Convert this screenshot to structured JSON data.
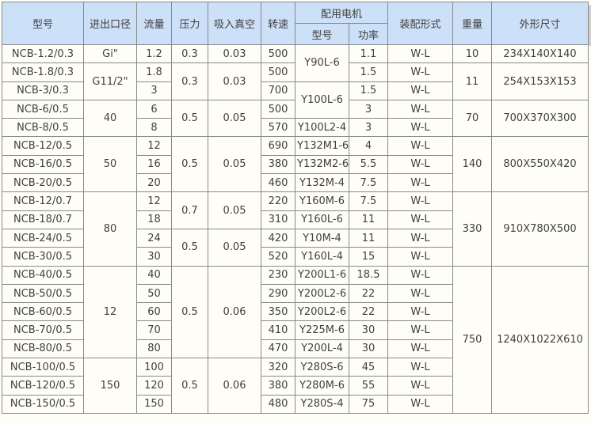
{
  "table": {
    "header": {
      "model": "型号",
      "diameter": "进出口径",
      "flow": "流量",
      "pressure": "压力",
      "vacuum": "吸入真空",
      "speed": "转速",
      "motor_group": "配用电机",
      "motor_model": "型号",
      "motor_power": "功率",
      "assembly": "装配形式",
      "weight": "重量",
      "dimensions": "外形尺寸"
    },
    "colors": {
      "header_bg": "#cce0f7",
      "cell_bg": "#fffef6",
      "border": "#87888a",
      "text": "#3f3f3f"
    },
    "rows": [
      [
        {
          "v": "NCB-1.2/0.3"
        },
        {
          "v": "Gi\""
        },
        {
          "v": "1.2"
        },
        {
          "v": "0.3"
        },
        {
          "v": "0.03"
        },
        {
          "v": "500"
        },
        {
          "v": "Y90L-6",
          "rs": 2
        },
        {
          "v": "1.1"
        },
        {
          "v": "W-L"
        },
        {
          "v": "10"
        },
        {
          "v": "234X140X140"
        }
      ],
      [
        {
          "v": "NCB-1.8/0.3"
        },
        {
          "v": "G11/2\"",
          "rs": 2
        },
        {
          "v": "1.8"
        },
        {
          "v": "0.3",
          "rs": 2
        },
        {
          "v": "0.03",
          "rs": 2
        },
        {
          "v": "500"
        },
        {
          "v": "1.5"
        },
        {
          "v": "W-L"
        },
        {
          "v": "11",
          "rs": 2
        },
        {
          "v": "254X153X153",
          "rs": 2
        }
      ],
      [
        {
          "v": "NCB-3/0.3"
        },
        {
          "v": "3"
        },
        {
          "v": "700"
        },
        {
          "v": "Y100L-6",
          "rs": 2
        },
        {
          "v": "1.5"
        },
        {
          "v": "W-L"
        }
      ],
      [
        {
          "v": "NCB-6/0.5"
        },
        {
          "v": "40",
          "rs": 2
        },
        {
          "v": "6"
        },
        {
          "v": "0.5",
          "rs": 2
        },
        {
          "v": "0.05",
          "rs": 2
        },
        {
          "v": "500"
        },
        {
          "v": "3"
        },
        {
          "v": "W-L"
        },
        {
          "v": "70",
          "rs": 2
        },
        {
          "v": "700X370X300",
          "rs": 2
        }
      ],
      [
        {
          "v": "NCB-8/0.5"
        },
        {
          "v": "8"
        },
        {
          "v": "570"
        },
        {
          "v": "Y100L2-4"
        },
        {
          "v": "3"
        },
        {
          "v": "W-L"
        }
      ],
      [
        {
          "v": "NCB-12/0.5"
        },
        {
          "v": "50",
          "rs": 3
        },
        {
          "v": "12"
        },
        {
          "v": "0.5",
          "rs": 3
        },
        {
          "v": "0.05",
          "rs": 3
        },
        {
          "v": "690"
        },
        {
          "v": "Y132M1-6"
        },
        {
          "v": "4"
        },
        {
          "v": "W-L"
        },
        {
          "v": "140",
          "rs": 3
        },
        {
          "v": "800X550X420",
          "rs": 3
        }
      ],
      [
        {
          "v": "NCB-16/0.5"
        },
        {
          "v": "16"
        },
        {
          "v": "380"
        },
        {
          "v": "Y132M2-6"
        },
        {
          "v": "5.5"
        },
        {
          "v": "W-L"
        }
      ],
      [
        {
          "v": "NCB-20/0.5"
        },
        {
          "v": "20"
        },
        {
          "v": "460"
        },
        {
          "v": "Y132M-4"
        },
        {
          "v": "7.5"
        },
        {
          "v": "W-L"
        }
      ],
      [
        {
          "v": "NCB-12/0.7"
        },
        {
          "v": "80",
          "rs": 4
        },
        {
          "v": "12"
        },
        {
          "v": "0.7",
          "rs": 2
        },
        {
          "v": "0.05",
          "rs": 2
        },
        {
          "v": "220"
        },
        {
          "v": "Y160M-6"
        },
        {
          "v": "7.5"
        },
        {
          "v": "W-L"
        },
        {
          "v": "330",
          "rs": 4
        },
        {
          "v": "910X780X500",
          "rs": 4
        }
      ],
      [
        {
          "v": "NCB-18/0.7"
        },
        {
          "v": "18"
        },
        {
          "v": "310"
        },
        {
          "v": "Y160L-6"
        },
        {
          "v": "11"
        },
        {
          "v": "W-L"
        }
      ],
      [
        {
          "v": "NCB-24/0.5"
        },
        {
          "v": "24"
        },
        {
          "v": "0.5",
          "rs": 2
        },
        {
          "v": "0.05",
          "rs": 2
        },
        {
          "v": "420"
        },
        {
          "v": "Y10M-4"
        },
        {
          "v": "11"
        },
        {
          "v": "W-L"
        }
      ],
      [
        {
          "v": "NCB-30/0.5"
        },
        {
          "v": "30"
        },
        {
          "v": "520"
        },
        {
          "v": "Y160L-4"
        },
        {
          "v": "15"
        },
        {
          "v": "W-L"
        }
      ],
      [
        {
          "v": "NCB-40/0.5"
        },
        {
          "v": "12",
          "rs": 5
        },
        {
          "v": "40"
        },
        {
          "v": "0.5",
          "rs": 5
        },
        {
          "v": "0.06",
          "rs": 5
        },
        {
          "v": "230"
        },
        {
          "v": "Y200L1-6"
        },
        {
          "v": "18.5"
        },
        {
          "v": "W-L"
        },
        {
          "v": "750",
          "rs": 8
        },
        {
          "v": "1240X1022X610",
          "rs": 8
        }
      ],
      [
        {
          "v": "NCB-50/0.5"
        },
        {
          "v": "50"
        },
        {
          "v": "290"
        },
        {
          "v": "Y200L2-6"
        },
        {
          "v": "22"
        },
        {
          "v": "W-L"
        }
      ],
      [
        {
          "v": "NCB-60/0.5"
        },
        {
          "v": "60"
        },
        {
          "v": "350"
        },
        {
          "v": "Y200L2-6"
        },
        {
          "v": "22"
        },
        {
          "v": "W-L"
        }
      ],
      [
        {
          "v": "NCB-70/0.5"
        },
        {
          "v": "70"
        },
        {
          "v": "410"
        },
        {
          "v": "Y225M-6"
        },
        {
          "v": "30"
        },
        {
          "v": "W-L"
        }
      ],
      [
        {
          "v": "NCB-80/0.5"
        },
        {
          "v": "80"
        },
        {
          "v": "470"
        },
        {
          "v": "Y200L-4"
        },
        {
          "v": "30"
        },
        {
          "v": "W-L"
        }
      ],
      [
        {
          "v": "NCB-100/0.5"
        },
        {
          "v": "150",
          "rs": 3
        },
        {
          "v": "100"
        },
        {
          "v": "0.5",
          "rs": 3
        },
        {
          "v": "0.06",
          "rs": 3
        },
        {
          "v": "320"
        },
        {
          "v": "Y280S-6"
        },
        {
          "v": "45"
        },
        {
          "v": "W-L"
        }
      ],
      [
        {
          "v": "NCB-120/0.5"
        },
        {
          "v": "120"
        },
        {
          "v": "380"
        },
        {
          "v": "Y280M-6"
        },
        {
          "v": "55"
        },
        {
          "v": "W-L"
        }
      ],
      [
        {
          "v": "NCB-150/0.5"
        },
        {
          "v": "150"
        },
        {
          "v": "480"
        },
        {
          "v": "Y280S-4"
        },
        {
          "v": "75"
        },
        {
          "v": "W-L"
        }
      ]
    ]
  }
}
